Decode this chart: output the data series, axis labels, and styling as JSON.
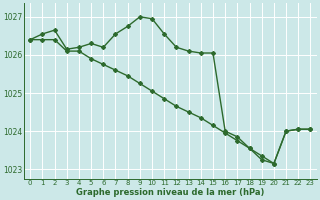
{
  "line1_x": [
    0,
    1,
    2,
    3,
    4,
    5,
    6,
    7,
    8,
    9,
    10,
    11,
    12,
    13,
    14,
    15,
    16,
    17,
    18,
    19,
    20,
    21,
    22,
    23
  ],
  "line1_y": [
    1026.4,
    1026.55,
    1026.65,
    1026.15,
    1026.2,
    1026.3,
    1026.2,
    1026.55,
    1026.75,
    1027.0,
    1026.95,
    1026.55,
    1026.2,
    1026.1,
    1026.05,
    1026.05,
    1024.0,
    1023.85,
    1023.55,
    1023.25,
    1023.15,
    1024.0,
    1024.05,
    1024.05
  ],
  "line2_x": [
    0,
    1,
    2,
    3,
    4,
    5,
    6,
    7,
    8,
    9,
    10,
    11,
    12,
    13,
    14,
    15,
    16,
    17,
    18,
    19,
    20,
    21,
    22,
    23
  ],
  "line2_y": [
    1026.4,
    1026.4,
    1026.4,
    1026.1,
    1026.1,
    1025.9,
    1025.75,
    1025.6,
    1025.45,
    1025.25,
    1025.05,
    1024.85,
    1024.65,
    1024.5,
    1024.35,
    1024.15,
    1023.95,
    1023.75,
    1023.55,
    1023.35,
    1023.15,
    1024.0,
    1024.05,
    1024.05
  ],
  "line_color": "#2d6a2d",
  "bg_color": "#cce8e8",
  "grid_color": "#b0d8d8",
  "xlabel": "Graphe pression niveau de la mer (hPa)",
  "xlim": [
    -0.5,
    23.5
  ],
  "ylim": [
    1022.75,
    1027.35
  ],
  "yticks": [
    1023,
    1024,
    1025,
    1026,
    1027
  ],
  "xticks": [
    0,
    1,
    2,
    3,
    4,
    5,
    6,
    7,
    8,
    9,
    10,
    11,
    12,
    13,
    14,
    15,
    16,
    17,
    18,
    19,
    20,
    21,
    22,
    23
  ],
  "marker": "D",
  "markersize": 2.0,
  "linewidth": 1.0,
  "tick_fontsize": 5.0,
  "xlabel_fontsize": 6.0
}
